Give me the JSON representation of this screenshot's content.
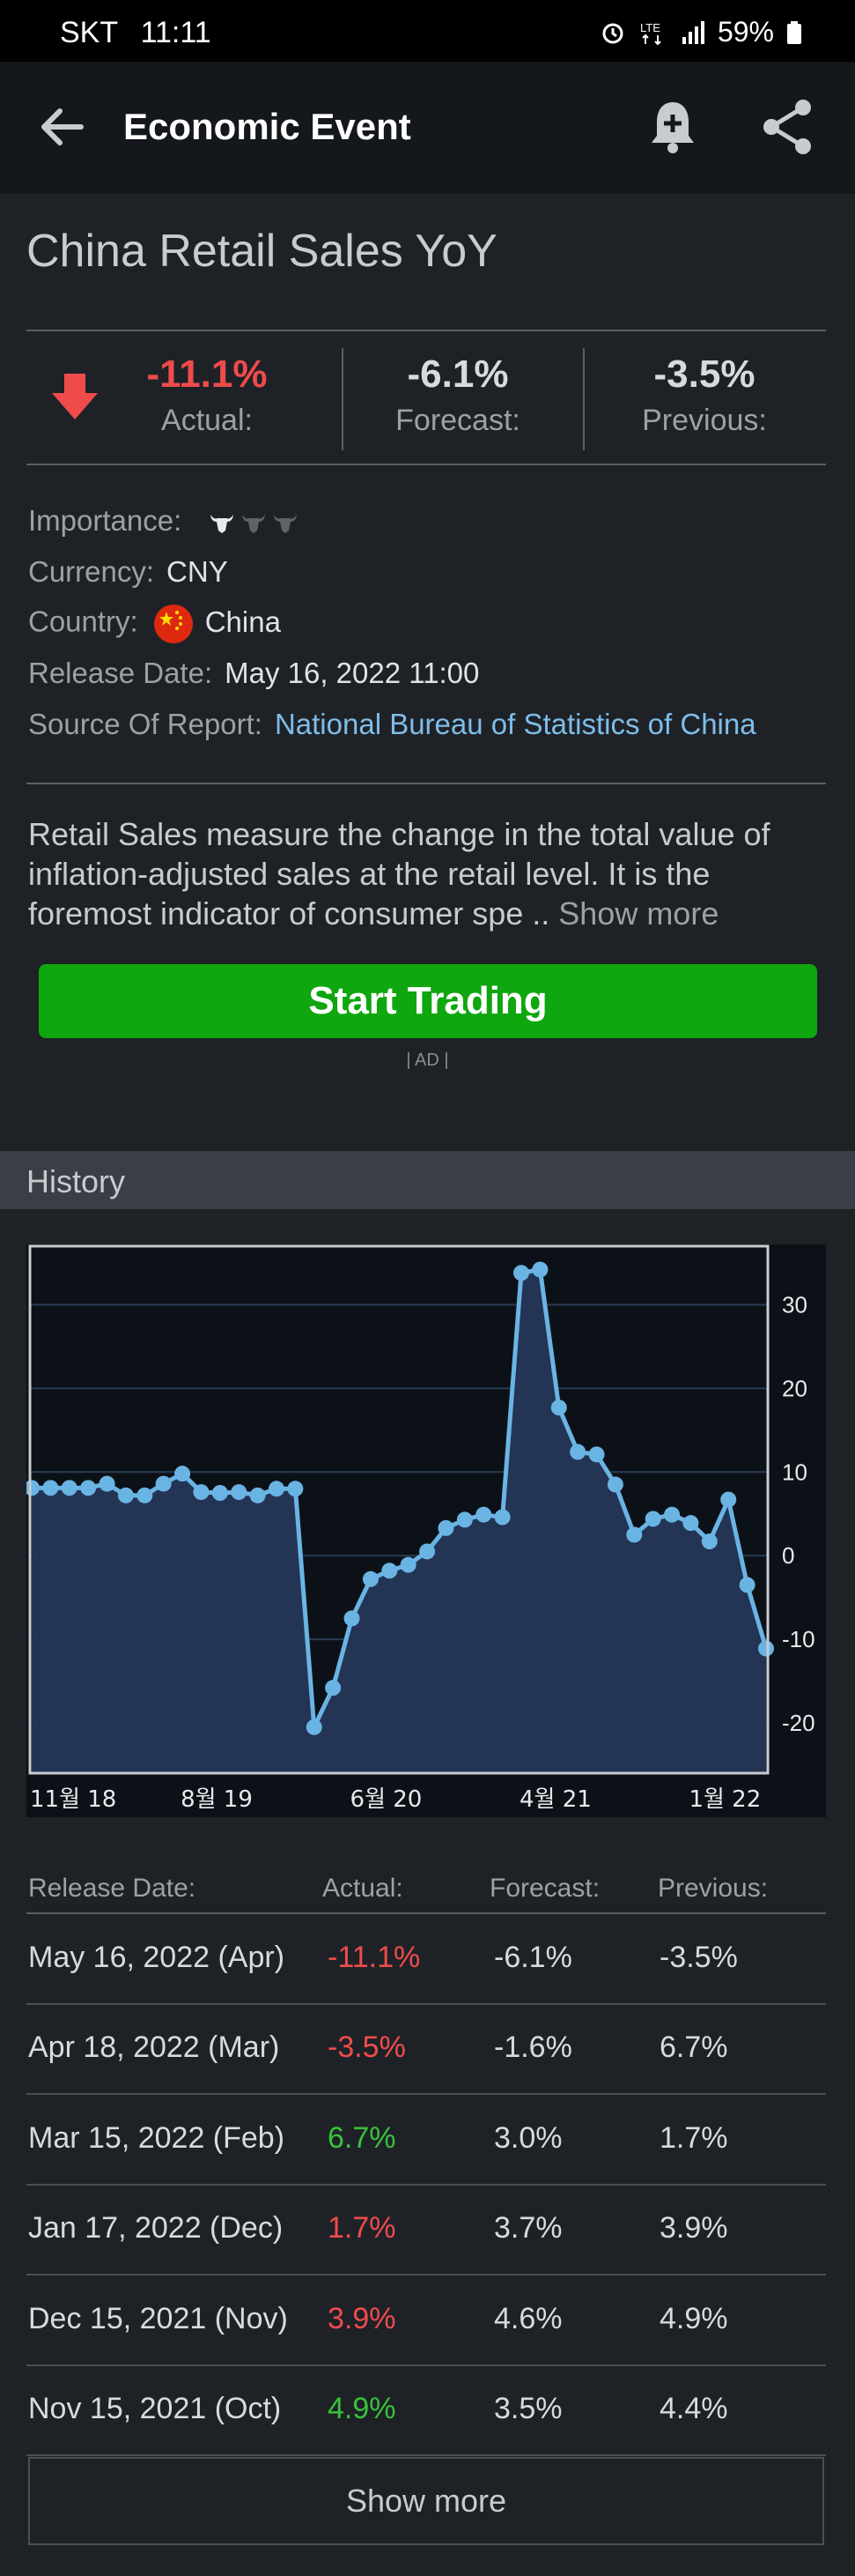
{
  "status": {
    "carrier": "SKT",
    "time": "11:11",
    "battery": "59%"
  },
  "appbar": {
    "title": "Economic Event"
  },
  "event": {
    "title": "China Retail Sales YoY",
    "actual": "-11.1%",
    "actual_label": "Actual:",
    "forecast": "-6.1%",
    "forecast_label": "Forecast:",
    "previous": "-3.5%",
    "previous_label": "Previous:"
  },
  "info": {
    "importance_label": "Importance:",
    "currency_label": "Currency:",
    "currency": "CNY",
    "country_label": "Country:",
    "country": "China",
    "release_label": "Release Date:",
    "release": "May 16, 2022 11:00",
    "source_label": "Source Of Report:",
    "source": "National Bureau of Statistics of China"
  },
  "description": {
    "text": "Retail Sales measure the change in the total value of inflation-adjusted sales at the retail level. It is the foremost indicator of consumer spe .. ",
    "more": "Show more"
  },
  "cta": {
    "label": "Start Trading",
    "ad": "| AD |"
  },
  "history": {
    "title": "History"
  },
  "chart_data": {
    "type": "area",
    "y_ticks": [
      30,
      20,
      10,
      0,
      -10,
      -20
    ],
    "ylim": [
      -26,
      37
    ],
    "x_tick_labels": [
      "11월 18",
      "8월 19",
      "6월 20",
      "4월 21",
      "1월 22"
    ],
    "values": [
      8.1,
      8.1,
      8.1,
      8.1,
      8.6,
      7.2,
      7.2,
      8.6,
      9.8,
      7.6,
      7.5,
      7.6,
      7.2,
      8.0,
      8.0,
      -20.5,
      -15.8,
      -7.5,
      -2.8,
      -1.8,
      -1.1,
      0.5,
      3.3,
      4.3,
      4.9,
      4.6,
      33.8,
      34.2,
      17.7,
      12.4,
      12.1,
      8.5,
      2.5,
      4.4,
      4.9,
      3.9,
      1.7,
      6.7,
      -3.5,
      -11.1
    ],
    "colors": {
      "line": "#6ab4e4",
      "fill": "#233455",
      "bg": "#0c1118"
    }
  },
  "table": {
    "headers": [
      "Release Date:",
      "Actual:",
      "Forecast:",
      "Previous:"
    ],
    "rows": [
      {
        "date": "May 16, 2022 (Apr)",
        "actual": "-11.1%",
        "forecast": "-6.1%",
        "previous": "-3.5%",
        "tone": "red"
      },
      {
        "date": "Apr 18, 2022 (Mar)",
        "actual": "-3.5%",
        "forecast": "-1.6%",
        "previous": "6.7%",
        "tone": "red"
      },
      {
        "date": "Mar 15, 2022 (Feb)",
        "actual": "6.7%",
        "forecast": "3.0%",
        "previous": "1.7%",
        "tone": "green"
      },
      {
        "date": "Jan 17, 2022 (Dec)",
        "actual": "1.7%",
        "forecast": "3.7%",
        "previous": "3.9%",
        "tone": "red"
      },
      {
        "date": "Dec 15, 2021 (Nov)",
        "actual": "3.9%",
        "forecast": "4.6%",
        "previous": "4.9%",
        "tone": "red"
      },
      {
        "date": "Nov 15, 2021 (Oct)",
        "actual": "4.9%",
        "forecast": "3.5%",
        "previous": "4.4%",
        "tone": "green"
      }
    ],
    "show_more": "Show more"
  }
}
